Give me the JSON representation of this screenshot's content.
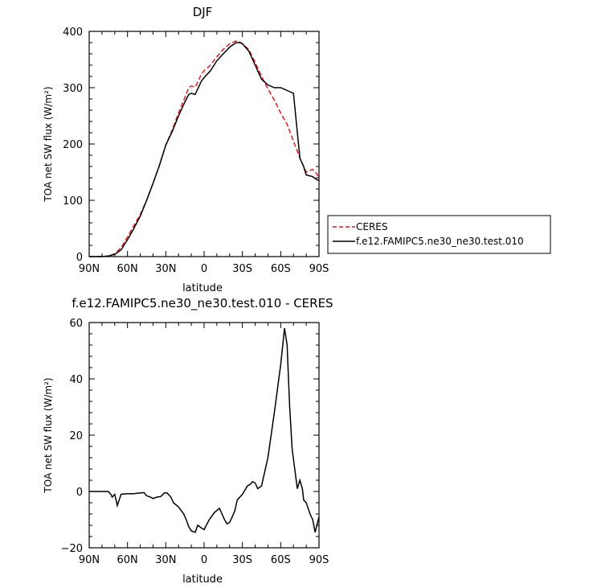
{
  "chart_data": [
    {
      "type": "line",
      "title": "DJF",
      "xlabel": "latitude",
      "ylabel": "TOA net SW flux (W/m²)",
      "ylim": [
        0,
        400
      ],
      "xlim": [
        -90,
        90
      ],
      "x_ticks": [
        {
          "value": -90,
          "label": "90N"
        },
        {
          "value": -60,
          "label": "60N"
        },
        {
          "value": -30,
          "label": "30N"
        },
        {
          "value": 0,
          "label": "0"
        },
        {
          "value": 30,
          "label": "30S"
        },
        {
          "value": 60,
          "label": "60S"
        },
        {
          "value": 90,
          "label": "90S"
        }
      ],
      "y_ticks": [
        0,
        100,
        200,
        300,
        400
      ],
      "legend_position": "right",
      "series": [
        {
          "name": "CERES",
          "color": "#e41a1c",
          "dash": "dashed",
          "x": [
            -90,
            -85,
            -80,
            -75,
            -70,
            -65,
            -60,
            -55,
            -50,
            -45,
            -40,
            -35,
            -30,
            -25,
            -20,
            -15,
            -12,
            -10,
            -7,
            -5,
            -2,
            0,
            5,
            10,
            15,
            20,
            25,
            28,
            30,
            35,
            40,
            45,
            50,
            55,
            60,
            65,
            70,
            75,
            78,
            80,
            85,
            88,
            90
          ],
          "y": [
            0,
            0,
            0,
            1,
            5,
            16,
            35,
            55,
            75,
            100,
            130,
            162,
            198,
            225,
            255,
            283,
            300,
            303,
            301,
            310,
            325,
            330,
            340,
            355,
            368,
            378,
            383,
            381,
            378,
            368,
            345,
            320,
            298,
            278,
            255,
            235,
            205,
            175,
            160,
            150,
            155,
            148,
            140
          ]
        },
        {
          "name": "f.e12.FAMIPC5.ne30_ne30.test.010",
          "color": "#000000",
          "dash": "solid",
          "x": [
            -90,
            -85,
            -80,
            -75,
            -70,
            -65,
            -60,
            -55,
            -50,
            -45,
            -40,
            -35,
            -30,
            -25,
            -20,
            -15,
            -12,
            -10,
            -7,
            -5,
            -2,
            0,
            5,
            10,
            15,
            20,
            25,
            28,
            30,
            35,
            40,
            45,
            50,
            55,
            60,
            65,
            70,
            75,
            78,
            80,
            85,
            88,
            90
          ],
          "y": [
            0,
            0,
            0,
            1,
            4,
            12,
            30,
            50,
            72,
            100,
            130,
            162,
            198,
            222,
            250,
            275,
            288,
            290,
            288,
            298,
            312,
            318,
            330,
            348,
            360,
            372,
            380,
            380,
            378,
            365,
            340,
            315,
            305,
            300,
            300,
            295,
            290,
            175,
            160,
            145,
            142,
            137,
            135
          ]
        }
      ]
    },
    {
      "type": "line",
      "title": "f.e12.FAMIPC5.ne30_ne30.test.010 - CERES",
      "xlabel": "latitude",
      "ylabel": "TOA net SW flux (W/m²)",
      "ylim": [
        -20,
        60
      ],
      "xlim": [
        -90,
        90
      ],
      "x_ticks": [
        {
          "value": -90,
          "label": "90N"
        },
        {
          "value": -60,
          "label": "60N"
        },
        {
          "value": -30,
          "label": "30N"
        },
        {
          "value": 0,
          "label": "0"
        },
        {
          "value": 30,
          "label": "30S"
        },
        {
          "value": 60,
          "label": "60S"
        },
        {
          "value": 90,
          "label": "90S"
        }
      ],
      "y_ticks": [
        -20,
        0,
        20,
        40,
        60
      ],
      "series": [
        {
          "color": "#000000",
          "dash": "solid",
          "x": [
            -90,
            -82,
            -78,
            -75,
            -73,
            -72,
            -70,
            -68,
            -65,
            -60,
            -55,
            -52,
            -49,
            -47,
            -45,
            -42,
            -40,
            -37,
            -34,
            -31,
            -29,
            -26,
            -24,
            -20,
            -16,
            -14,
            -12,
            -10,
            -7,
            -5,
            -2,
            0,
            4,
            8,
            12,
            16,
            18,
            20,
            22,
            24,
            26,
            30,
            34,
            36,
            38,
            40,
            42,
            45,
            50,
            55,
            60,
            63,
            65,
            67,
            69,
            71,
            73,
            75,
            77,
            78,
            80,
            83,
            85,
            87,
            90
          ],
          "y": [
            0,
            0,
            0,
            0,
            -1,
            -2,
            -1,
            -5,
            -1,
            -0.8,
            -0.8,
            -0.6,
            -0.5,
            -0.4,
            -1.5,
            -2,
            -2.5,
            -2,
            -1.8,
            -0.5,
            -0.5,
            -2,
            -4,
            -5.5,
            -8,
            -10,
            -12.5,
            -14,
            -14.5,
            -12,
            -13,
            -13.5,
            -10,
            -7.5,
            -6,
            -10,
            -11.5,
            -11,
            -9,
            -7,
            -3,
            -1,
            2,
            2.5,
            3.5,
            3,
            1,
            2,
            12,
            28,
            45,
            58,
            52,
            30,
            15,
            8,
            1,
            4,
            1,
            -3,
            -4,
            -8,
            -10,
            -14.5,
            -9
          ]
        }
      ]
    }
  ]
}
